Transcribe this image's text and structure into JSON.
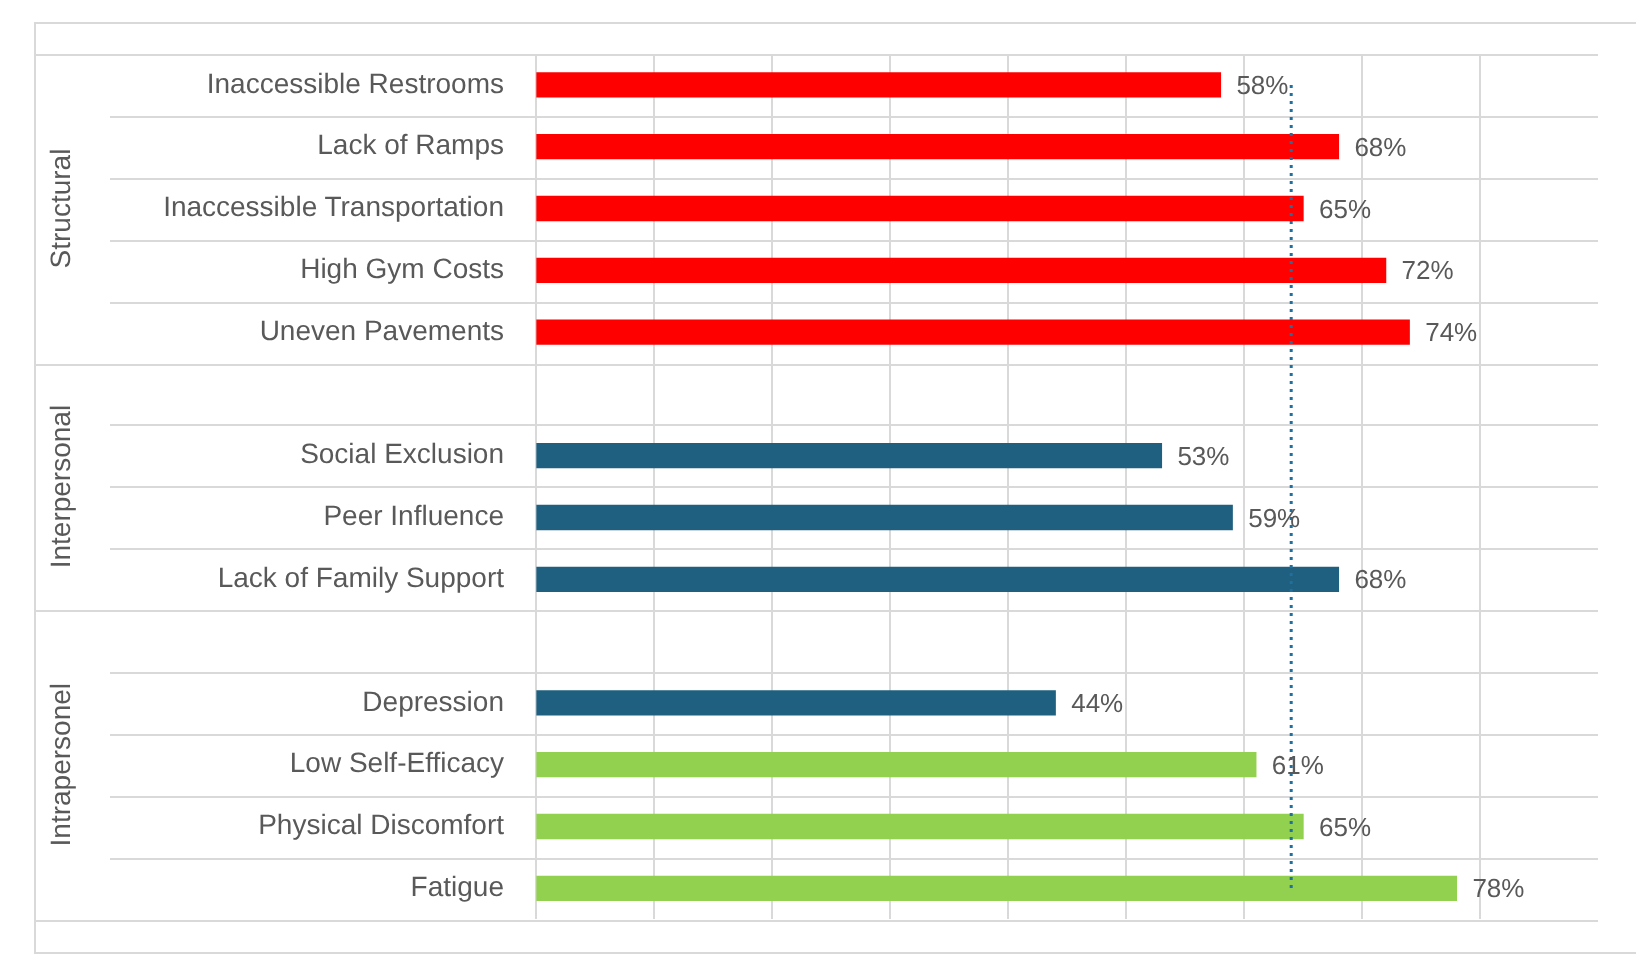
{
  "chart_data": {
    "type": "bar",
    "orientation": "horizontal",
    "relative": false,
    "categories": [
      "Inaccessible Restrooms",
      "Lack of Ramps",
      "Inaccessible Transportation",
      "High Gym Costs",
      "Uneven Pavements",
      null,
      "Social Exclusion",
      "Peer Influence",
      "Lack of Family Support",
      null,
      "Depression",
      "Low Self-Efficacy",
      "Physical Discomfort",
      "Fatigue"
    ],
    "values": [
      58,
      68,
      65,
      72,
      74,
      null,
      53,
      59,
      68,
      null,
      44,
      61,
      65,
      78
    ],
    "value_labels": [
      "58%",
      "68%",
      "65%",
      "72%",
      "74%",
      null,
      "53%",
      "59%",
      "68%",
      null,
      "44%",
      "61%",
      "65%",
      "78%"
    ],
    "colors": [
      "#ff0000",
      "#ff0000",
      "#ff0000",
      "#ff0000",
      "#ff0000",
      "#1f5f7f",
      "#1f5f7f",
      "#1f5f7f",
      "#1f5f7f",
      "#1f5f7f",
      "#1f5f7f",
      "#92d050",
      "#92d050",
      "#92d050"
    ],
    "xlim": [
      0,
      90
    ],
    "xticks": [
      {
        "value": 0,
        "label": null
      },
      {
        "value": 10,
        "label": null
      },
      {
        "value": 20,
        "label": null
      },
      {
        "value": 30,
        "label": null
      },
      {
        "value": 40,
        "label": null
      },
      {
        "value": 50,
        "label": null
      },
      {
        "value": 60,
        "label": null
      },
      {
        "value": 70,
        "label": null
      },
      {
        "value": 80,
        "label": null
      }
    ],
    "tick_labels": false,
    "grid": true,
    "ref_lines": [
      {
        "axis": "x",
        "value": 64,
        "color": "#1f6f9f",
        "line_style": "dotted"
      }
    ],
    "annotations": [
      "Structural",
      "Interpersonal",
      "Intrapersonel"
    ]
  }
}
